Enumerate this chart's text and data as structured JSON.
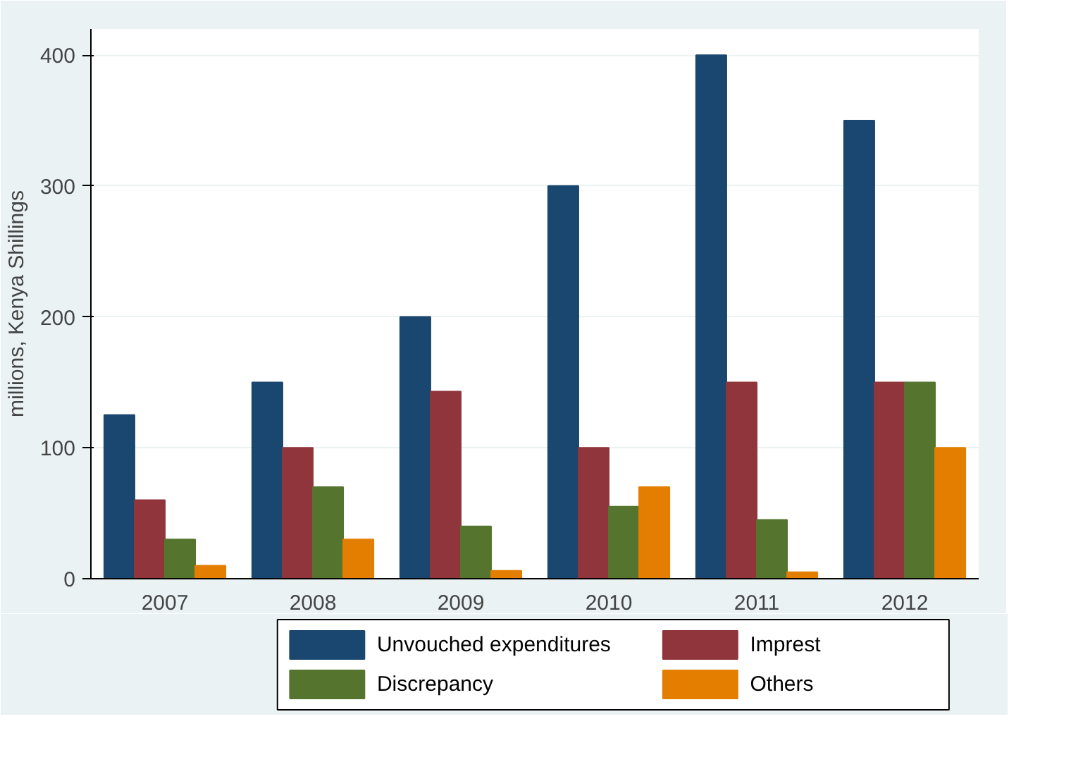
{
  "chart_data": {
    "type": "bar",
    "ylabel": "millions, Kenya Shillings",
    "categories": [
      "2007",
      "2008",
      "2009",
      "2010",
      "2011",
      "2012"
    ],
    "series": [
      {
        "name": "Unvouched expenditures",
        "color": "#1a476f",
        "values": [
          125,
          150,
          200,
          300,
          400,
          350
        ]
      },
      {
        "name": "Imprest",
        "color": "#90353b",
        "values": [
          60,
          100,
          143,
          100,
          150,
          150
        ]
      },
      {
        "name": "Discrepancy",
        "color": "#55752f",
        "values": [
          30,
          70,
          40,
          55,
          45,
          150
        ]
      },
      {
        "name": "Others",
        "color": "#e37e00",
        "values": [
          10,
          30,
          6,
          70,
          5,
          100
        ]
      }
    ],
    "ylim": [
      0,
      420
    ],
    "yticks": [
      0,
      100,
      200,
      300,
      400
    ],
    "grid": "y",
    "legend": "bottom"
  }
}
